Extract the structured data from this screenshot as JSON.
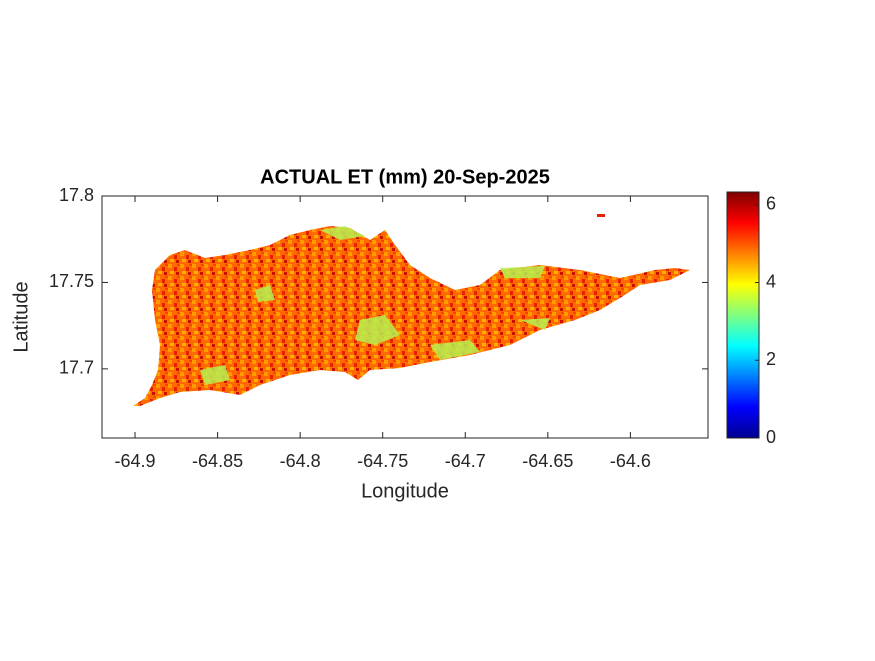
{
  "chart_data": {
    "type": "map",
    "title": "ACTUAL ET (mm) 20-Sep-2025",
    "xlabel": "Longitude",
    "ylabel": "Latitude",
    "xlim": [
      -64.92,
      -64.553
    ],
    "xticks": [
      -64.9,
      -64.85,
      -64.8,
      -64.75,
      -64.7,
      -64.65,
      -64.6
    ],
    "ylim": [
      17.66,
      17.8
    ],
    "yticks": [
      17.7,
      17.75,
      17.8
    ],
    "colormap": "jet",
    "clim": [
      0,
      6.33
    ],
    "cticks": [
      0,
      2,
      4,
      6
    ]
  }
}
